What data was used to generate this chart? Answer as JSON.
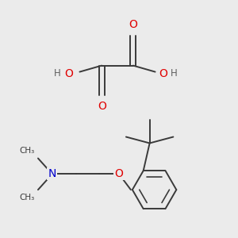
{
  "background_color": "#ebebeb",
  "figsize": [
    3.0,
    3.0
  ],
  "dpi": 100,
  "bond_color": "#3a3a3a",
  "bond_lw": 1.4,
  "atom_colors": {
    "O": "#e00000",
    "N": "#0000cc",
    "C": "#3a3a3a",
    "H": "#606060"
  },
  "font_size": 8.0
}
